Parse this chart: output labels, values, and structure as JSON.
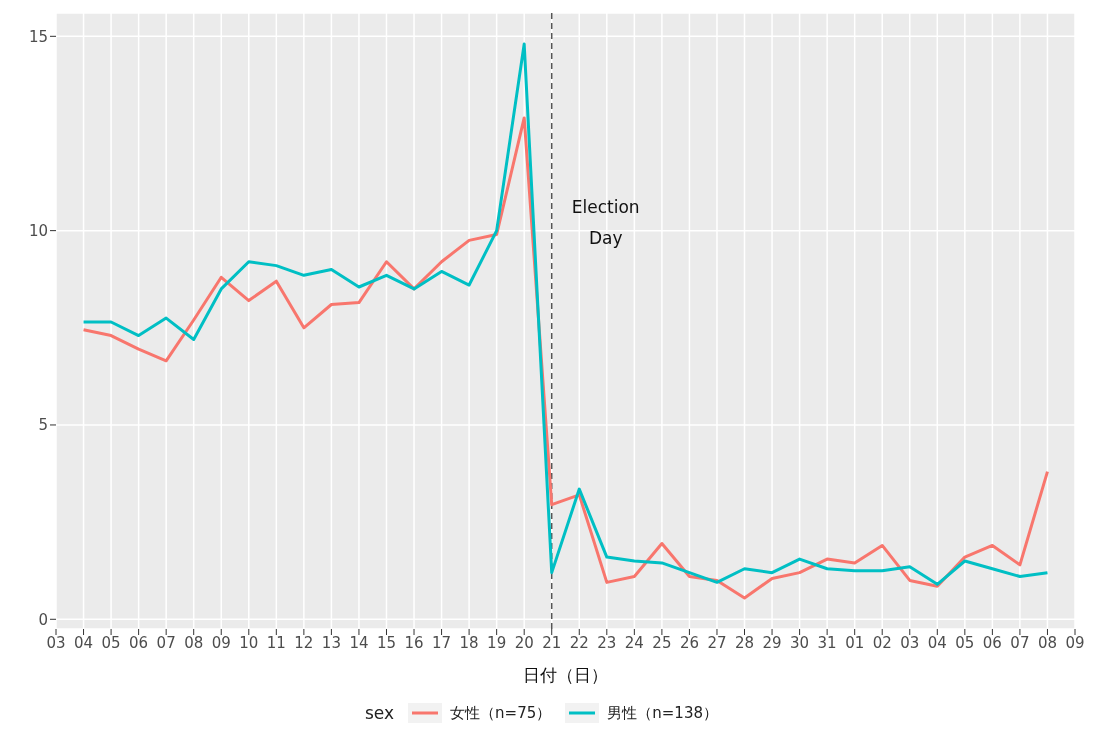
{
  "chart_data": {
    "type": "line",
    "xlabel": "日付（日）",
    "legend_title": "sex",
    "categories": [
      "03",
      "04",
      "05",
      "06",
      "07",
      "08",
      "09",
      "10",
      "11",
      "12",
      "13",
      "14",
      "15",
      "16",
      "17",
      "18",
      "19",
      "20",
      "21",
      "22",
      "23",
      "24",
      "25",
      "26",
      "27",
      "28",
      "29",
      "30",
      "31",
      "01",
      "02",
      "03",
      "04",
      "05",
      "06",
      "07",
      "08",
      "09"
    ],
    "series": [
      {
        "name": "女性（n=75）",
        "color": "#f8766d",
        "values": [
          null,
          7.45,
          7.3,
          6.95,
          6.65,
          7.7,
          8.8,
          8.2,
          8.7,
          7.5,
          8.1,
          8.15,
          9.2,
          8.5,
          9.2,
          9.75,
          9.9,
          12.9,
          2.95,
          3.2,
          0.95,
          1.1,
          1.95,
          1.1,
          1.0,
          0.55,
          1.05,
          1.2,
          1.55,
          1.45,
          1.9,
          1.0,
          0.85,
          1.6,
          1.9,
          1.4,
          3.8,
          null
        ]
      },
      {
        "name": "男性（n=138）",
        "color": "#00bfc4",
        "values": [
          null,
          7.65,
          7.65,
          7.3,
          7.75,
          7.2,
          8.5,
          9.2,
          9.1,
          8.85,
          9.0,
          8.55,
          8.85,
          8.5,
          8.95,
          8.6,
          10.0,
          14.8,
          1.2,
          3.35,
          1.6,
          1.5,
          1.45,
          1.2,
          0.95,
          1.3,
          1.2,
          1.55,
          1.3,
          1.25,
          1.25,
          1.35,
          0.9,
          1.5,
          1.3,
          1.1,
          1.2,
          null
        ]
      }
    ],
    "ylim": [
      -0.25,
      15.6
    ],
    "yticks": [
      0,
      5,
      10,
      15
    ],
    "grid": true,
    "legend": "bottom",
    "marker": "none",
    "line_style": "solid",
    "ref_lines": [
      {
        "axis": "x",
        "value": "21",
        "label": "Election Day",
        "color": "#555555",
        "line_style": "dashed"
      }
    ]
  }
}
